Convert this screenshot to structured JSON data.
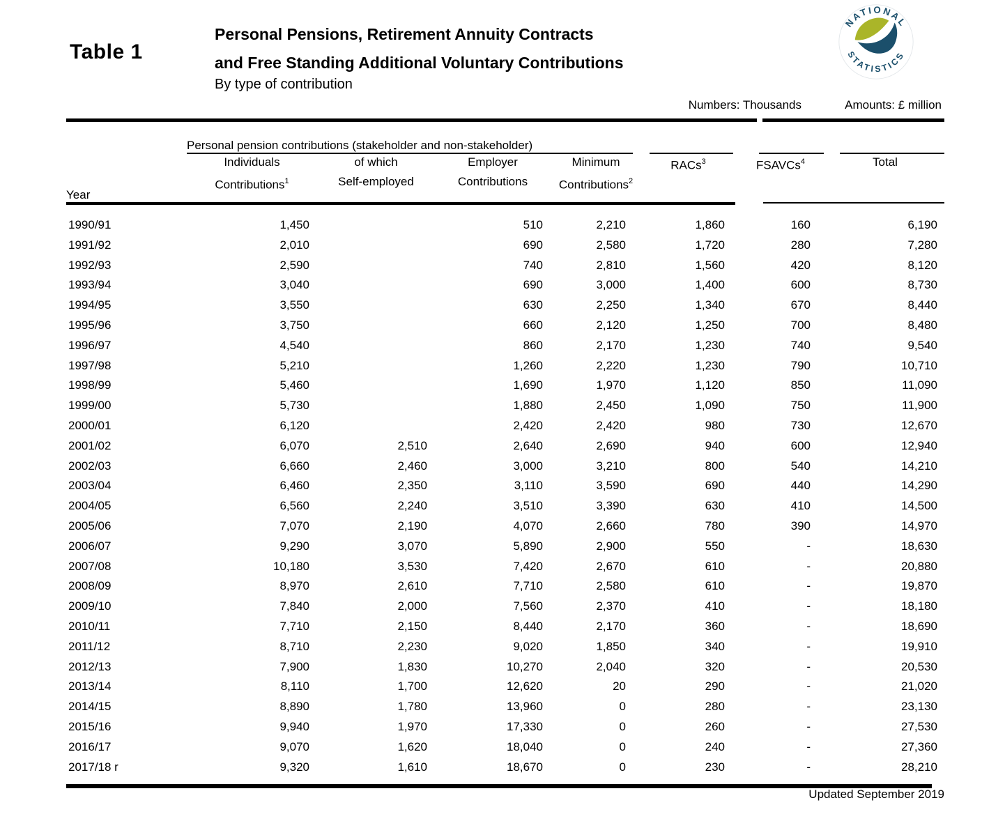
{
  "page": {
    "table_label": "Table 1",
    "title_line1": "Personal Pensions, Retirement Annuity Contracts",
    "title_line2": "and Free Standing Additional Voluntary Contributions",
    "subtitle": "By type of contribution",
    "units_numbers": "Numbers: Thousands",
    "units_amounts": "Amounts: £ million",
    "footer": "Updated September 2019"
  },
  "logo": {
    "name": "National Statistics",
    "text_top": "NATIONAL",
    "text_bottom": "STATISTICS",
    "navy": "#1b4f6b",
    "green": "#aab529"
  },
  "table": {
    "group_header": "Personal pension contributions (stakeholder and non-stakeholder)",
    "columns": {
      "year": "Year",
      "individuals": {
        "line1": "Individuals",
        "line2": "Contributions",
        "sup": "1"
      },
      "self_employed": {
        "line1": "of which",
        "line2": "Self-employed"
      },
      "employer": {
        "line1": "Employer",
        "line2": "Contributions"
      },
      "minimum": {
        "line1": "Minimum",
        "line2": "Contributions",
        "sup": "2"
      },
      "racs": {
        "label": "RACs",
        "sup": "3"
      },
      "fsavcs": {
        "label": "FSAVCs",
        "sup": "4"
      },
      "total": {
        "label": "Total"
      }
    },
    "rows": [
      [
        "1990/91",
        "1,450",
        "",
        "510",
        "2,210",
        "1,860",
        "160",
        "6,190"
      ],
      [
        "1991/92",
        "2,010",
        "",
        "690",
        "2,580",
        "1,720",
        "280",
        "7,280"
      ],
      [
        "1992/93",
        "2,590",
        "",
        "740",
        "2,810",
        "1,560",
        "420",
        "8,120"
      ],
      [
        "1993/94",
        "3,040",
        "",
        "690",
        "3,000",
        "1,400",
        "600",
        "8,730"
      ],
      [
        "1994/95",
        "3,550",
        "",
        "630",
        "2,250",
        "1,340",
        "670",
        "8,440"
      ],
      [
        "1995/96",
        "3,750",
        "",
        "660",
        "2,120",
        "1,250",
        "700",
        "8,480"
      ],
      [
        "1996/97",
        "4,540",
        "",
        "860",
        "2,170",
        "1,230",
        "740",
        "9,540"
      ],
      [
        "1997/98",
        "5,210",
        "",
        "1,260",
        "2,220",
        "1,230",
        "790",
        "10,710"
      ],
      [
        "1998/99",
        "5,460",
        "",
        "1,690",
        "1,970",
        "1,120",
        "850",
        "11,090"
      ],
      [
        "1999/00",
        "5,730",
        "",
        "1,880",
        "2,450",
        "1,090",
        "750",
        "11,900"
      ],
      [
        "2000/01",
        "6,120",
        "",
        "2,420",
        "2,420",
        "980",
        "730",
        "12,670"
      ],
      [
        "2001/02",
        "6,070",
        "2,510",
        "2,640",
        "2,690",
        "940",
        "600",
        "12,940"
      ],
      [
        "2002/03",
        "6,660",
        "2,460",
        "3,000",
        "3,210",
        "800",
        "540",
        "14,210"
      ],
      [
        "2003/04",
        "6,460",
        "2,350",
        "3,110",
        "3,590",
        "690",
        "440",
        "14,290"
      ],
      [
        "2004/05",
        "6,560",
        "2,240",
        "3,510",
        "3,390",
        "630",
        "410",
        "14,500"
      ],
      [
        "2005/06",
        "7,070",
        "2,190",
        "4,070",
        "2,660",
        "780",
        "390",
        "14,970"
      ],
      [
        "2006/07",
        "9,290",
        "3,070",
        "5,890",
        "2,900",
        "550",
        "-",
        "18,630"
      ],
      [
        "2007/08",
        "10,180",
        "3,530",
        "7,420",
        "2,670",
        "610",
        "-",
        "20,880"
      ],
      [
        "2008/09",
        "8,970",
        "2,610",
        "7,710",
        "2,580",
        "610",
        "-",
        "19,870"
      ],
      [
        "2009/10",
        "7,840",
        "2,000",
        "7,560",
        "2,370",
        "410",
        "-",
        "18,180"
      ],
      [
        "2010/11",
        "7,710",
        "2,150",
        "8,440",
        "2,170",
        "360",
        "-",
        "18,690"
      ],
      [
        "2011/12",
        "8,710",
        "2,230",
        "9,020",
        "1,850",
        "340",
        "-",
        "19,910"
      ],
      [
        "2012/13",
        "7,900",
        "1,830",
        "10,270",
        "2,040",
        "320",
        "-",
        "20,530"
      ],
      [
        "2013/14",
        "8,110",
        "1,700",
        "12,620",
        "20",
        "290",
        "-",
        "21,020"
      ],
      [
        "2014/15",
        "8,890",
        "1,780",
        "13,960",
        "0",
        "280",
        "-",
        "23,130"
      ],
      [
        "2015/16",
        "9,940",
        "1,970",
        "17,330",
        "0",
        "260",
        "-",
        "27,530"
      ],
      [
        "2016/17",
        "9,070",
        "1,620",
        "18,040",
        "0",
        "240",
        "-",
        "27,360"
      ],
      [
        "2017/18 r",
        "9,320",
        "1,610",
        "18,670",
        "0",
        "230",
        "-",
        "28,210"
      ]
    ]
  }
}
